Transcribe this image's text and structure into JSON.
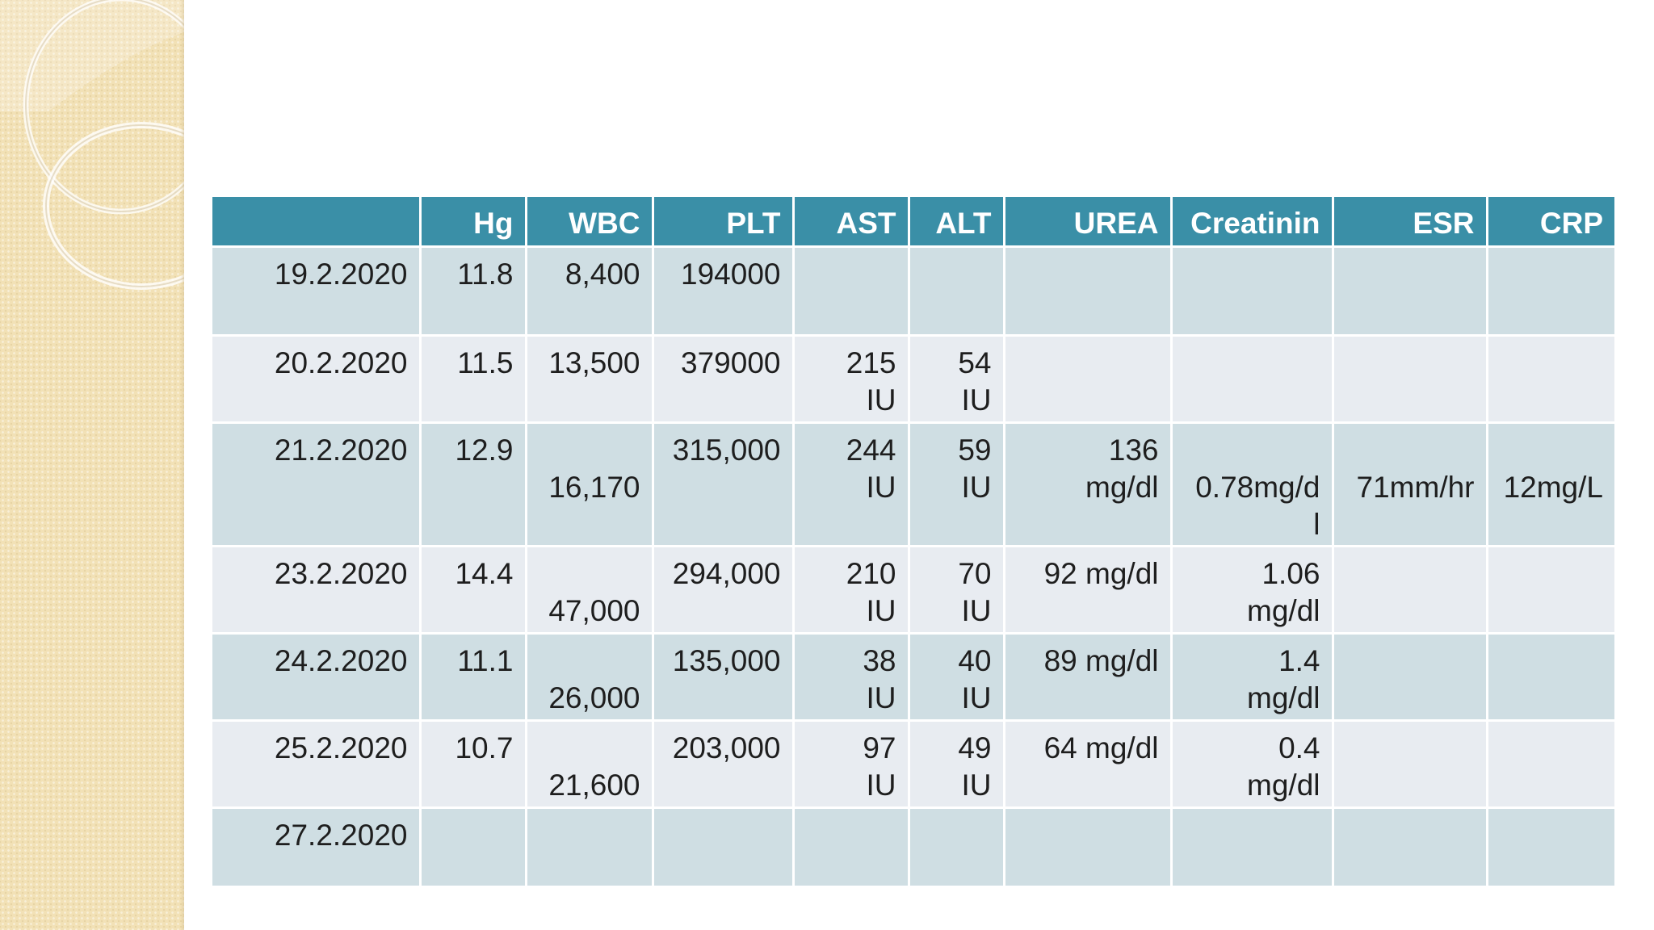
{
  "table": {
    "headers": [
      "",
      "Hg",
      "WBC",
      "PLT",
      "AST",
      "ALT",
      "UREA",
      "Creatinin",
      "ESR",
      "CRP"
    ],
    "rows": [
      [
        "19.2.2020",
        "11.8",
        "8,400",
        "194000",
        "",
        "",
        "",
        "",
        "",
        ""
      ],
      [
        "20.2.2020",
        "11.5",
        "13,500",
        "379000",
        "215\nIU",
        "54\nIU",
        "",
        "",
        "",
        ""
      ],
      [
        "21.2.2020",
        "12.9",
        "\n16,170",
        "315,000",
        "244\nIU",
        "59\nIU",
        "136\nmg/dl",
        "\n0.78mg/d\nl",
        "\n71mm/hr",
        "\n12mg/L"
      ],
      [
        "23.2.2020",
        "14.4",
        "\n47,000",
        "294,000",
        "210\nIU",
        "70\nIU",
        "92 mg/dl",
        "1.06\nmg/dl",
        "",
        ""
      ],
      [
        "24.2.2020",
        "11.1",
        "\n26,000",
        "135,000",
        "38\nIU",
        "40\nIU",
        "89 mg/dl",
        "1.4\nmg/dl",
        "",
        ""
      ],
      [
        "25.2.2020",
        "10.7",
        "\n21,600",
        "203,000",
        "97\nIU",
        "49\nIU",
        "64 mg/dl",
        "0.4\nmg/dl",
        "",
        ""
      ],
      [
        "27.2.2020",
        "",
        "",
        "",
        "",
        "",
        "",
        "",
        "",
        ""
      ]
    ]
  },
  "colors": {
    "header_bg": "#3a8fa7",
    "row_odd_bg": "#cfdee3",
    "row_even_bg": "#e8ecf1",
    "side_panel": "#f2e1b6"
  }
}
